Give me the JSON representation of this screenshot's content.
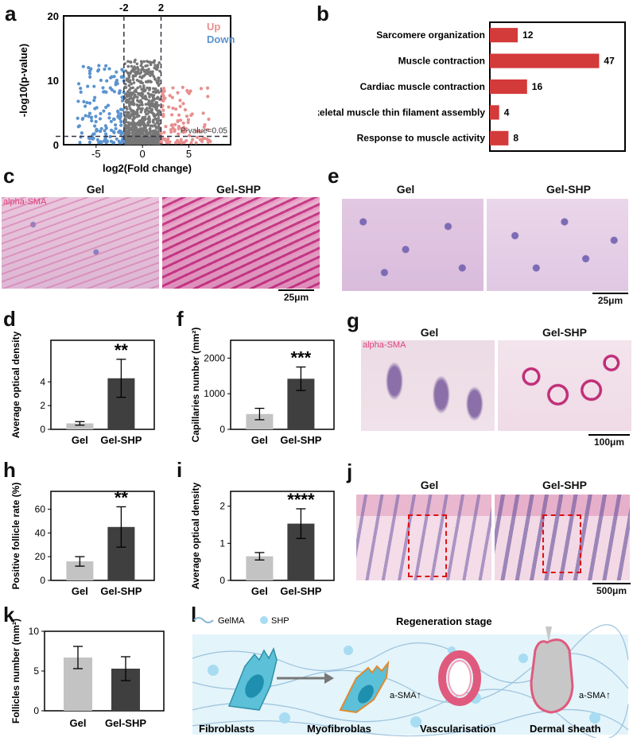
{
  "panels": {
    "a": {
      "label": "a",
      "chart_data": {
        "type": "scatter",
        "xlabel": "log2(Fold change)",
        "ylabel": "-log10(p-value)",
        "xlim": [
          -8.5,
          9.5
        ],
        "ylim": [
          0,
          20
        ],
        "xticks": [
          -5,
          0,
          5
        ],
        "yticks": [
          0,
          10,
          20
        ],
        "vlines": [
          -2,
          2
        ],
        "vline_labels": [
          "-2",
          "2"
        ],
        "hline": 1.3,
        "hline_label": "P-value=0.05",
        "legend": [
          {
            "name": "Up",
            "color": "#e88f8f"
          },
          {
            "name": "Down",
            "color": "#5b93cf"
          }
        ],
        "colors": {
          "up": "#e88f8f",
          "down": "#5b93cf",
          "ns": "#777777"
        }
      }
    },
    "b": {
      "label": "b",
      "chart_data": {
        "type": "bar",
        "orientation": "horizontal",
        "categories": [
          "Sarcomere organization",
          "Muscle contraction",
          "Cardiac muscle contraction",
          "Skeletal muscle thin filament assembly",
          "Response to muscle activity"
        ],
        "values": [
          12,
          47,
          16,
          4,
          8
        ],
        "xlim": [
          0,
          50
        ],
        "color": "#d33a3a"
      }
    },
    "c": {
      "label": "c",
      "stain": "alpha-SMA",
      "left": "Gel",
      "right": "Gel-SHP",
      "scale": "25μm"
    },
    "e": {
      "label": "e",
      "left": "Gel",
      "right": "Gel-SHP",
      "scale": "25μm"
    },
    "d": {
      "label": "d",
      "chart_data": {
        "type": "bar",
        "categories": [
          "Gel",
          "Gel-SHP"
        ],
        "values": [
          0.5,
          4.3
        ],
        "errors": [
          0.15,
          1.6
        ],
        "ylim": [
          0,
          7.5
        ],
        "yticks": [
          0,
          2,
          4
        ],
        "ylabel": "Average optical density",
        "significance": "**"
      }
    },
    "f": {
      "label": "f",
      "chart_data": {
        "type": "bar",
        "categories": [
          "Gel",
          "Gel-SHP"
        ],
        "values": [
          430,
          1420
        ],
        "errors": [
          160,
          330
        ],
        "ylim": [
          0,
          2500
        ],
        "yticks": [
          0,
          1000,
          2000
        ],
        "ylabel": "Capillaries number (mm²)",
        "significance": "***"
      }
    },
    "g": {
      "label": "g",
      "stain": "alpha-SMA",
      "left": "Gel",
      "right": "Gel-SHP",
      "scale": "100μm"
    },
    "h": {
      "label": "h",
      "chart_data": {
        "type": "bar",
        "categories": [
          "Gel",
          "Gel-SHP"
        ],
        "values": [
          16,
          45
        ],
        "errors": [
          4,
          17
        ],
        "ylim": [
          0,
          75
        ],
        "yticks": [
          0,
          20,
          40,
          60
        ],
        "ylabel": "Positive follicle rate (%)",
        "significance": "**"
      }
    },
    "i": {
      "label": "i",
      "chart_data": {
        "type": "bar",
        "categories": [
          "Gel",
          "Gel-SHP"
        ],
        "values": [
          0.65,
          1.53
        ],
        "errors": [
          0.1,
          0.4
        ],
        "ylim": [
          0,
          2.4
        ],
        "yticks": [
          0,
          1,
          2
        ],
        "ylabel": "Average optical density",
        "significance": "****"
      }
    },
    "j": {
      "label": "j",
      "left": "Gel",
      "right": "Gel-SHP",
      "scale": "500μm"
    },
    "k": {
      "label": "k",
      "chart_data": {
        "type": "bar",
        "categories": [
          "Gel",
          "Gel-SHP"
        ],
        "values": [
          6.7,
          5.3
        ],
        "errors": [
          1.4,
          1.5
        ],
        "ylim": [
          0,
          10
        ],
        "yticks": [
          0,
          5,
          10
        ],
        "ylabel": "Follicles number (mm²)",
        "significance": ""
      }
    },
    "l": {
      "label": "l",
      "title": "Regeneration stage",
      "legend_gelma": "GelMA",
      "legend_shp": "SHP",
      "fibroblasts": "Fibroblasts",
      "myofibroblasts": "Myofibroblas",
      "vascularisation": "Vascularisation",
      "dermal_sheath": "Dermal sheath",
      "asma1": "a-SMA",
      "asma2": "a-SMA"
    }
  }
}
